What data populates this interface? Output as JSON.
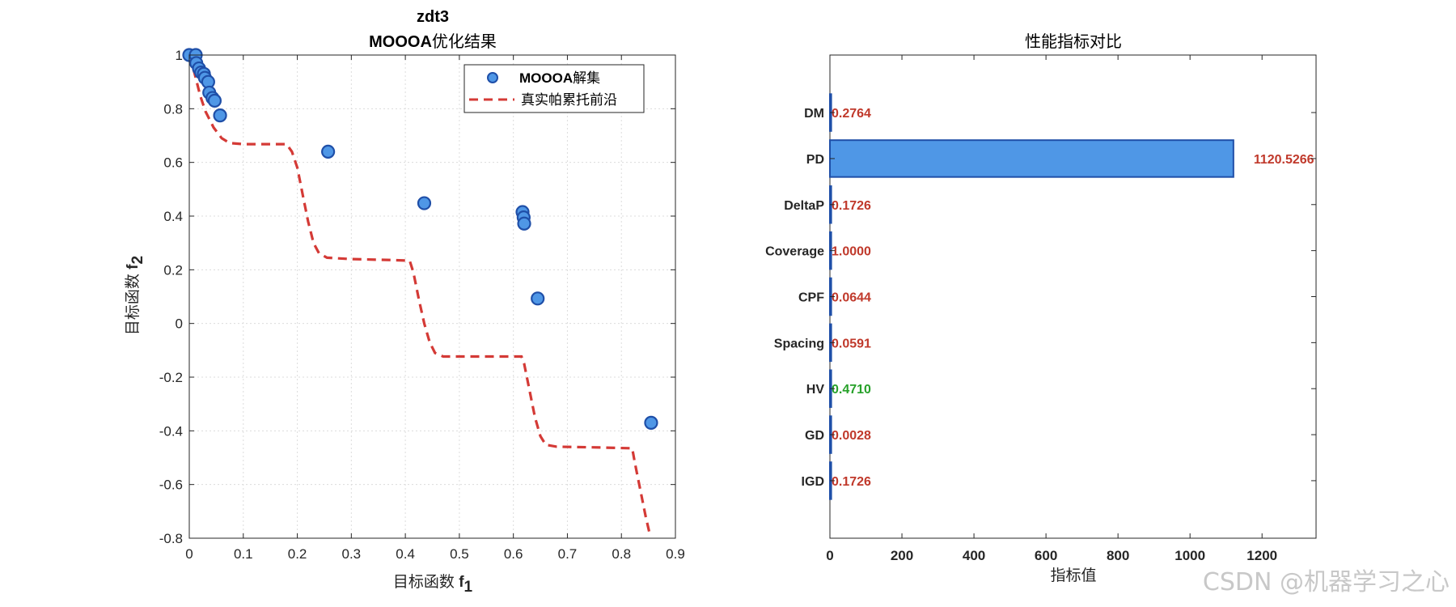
{
  "chart_data": [
    {
      "type": "scatter",
      "title": "zdt3",
      "subtitle_bold": "MOOOA",
      "subtitle_rest": "优化结果",
      "xlabel": "目标函数 ",
      "xlabel_bold": "f",
      "xlabel_sub": "1",
      "ylabel": "目标函数 ",
      "ylabel_bold": "f",
      "ylabel_sub": "2",
      "xlim": [
        0,
        0.9
      ],
      "ylim": [
        -0.8,
        1
      ],
      "xticks": [
        "0",
        "0.1",
        "0.2",
        "0.3",
        "0.4",
        "0.5",
        "0.6",
        "0.7",
        "0.8",
        "0.9"
      ],
      "yticks": [
        "-0.8",
        "-0.6",
        "-0.4",
        "-0.2",
        "0",
        "0.2",
        "0.4",
        "0.6",
        "0.8",
        "1"
      ],
      "grid": true,
      "legend_position": "top-right",
      "series": [
        {
          "name_bold": "MOOOA",
          "name_rest": "解集",
          "kind": "scatter",
          "color": "#4f97e6",
          "edge": "#1f4fa8",
          "points": [
            [
              0.0,
              1.0
            ],
            [
              0.012,
              1.0
            ],
            [
              0.013,
              0.97
            ],
            [
              0.018,
              0.95
            ],
            [
              0.022,
              0.935
            ],
            [
              0.027,
              0.93
            ],
            [
              0.029,
              0.915
            ],
            [
              0.035,
              0.9
            ],
            [
              0.037,
              0.86
            ],
            [
              0.043,
              0.84
            ],
            [
              0.047,
              0.83
            ],
            [
              0.057,
              0.775
            ],
            [
              0.257,
              0.64
            ],
            [
              0.435,
              0.448
            ],
            [
              0.617,
              0.415
            ],
            [
              0.619,
              0.395
            ],
            [
              0.62,
              0.372
            ],
            [
              0.645,
              0.093
            ],
            [
              0.855,
              -0.37
            ]
          ]
        },
        {
          "name": "真实帕累托前沿",
          "kind": "line-dashed",
          "color": "#d43a36",
          "points": [
            [
              0.0,
              1.0
            ],
            [
              0.01,
              0.93
            ],
            [
              0.02,
              0.85
            ],
            [
              0.03,
              0.79
            ],
            [
              0.045,
              0.73
            ],
            [
              0.06,
              0.69
            ],
            [
              0.075,
              0.672
            ],
            [
              0.1,
              0.668
            ],
            [
              0.15,
              0.668
            ],
            [
              0.18,
              0.668
            ],
            [
              0.19,
              0.64
            ],
            [
              0.2,
              0.58
            ],
            [
              0.21,
              0.48
            ],
            [
              0.22,
              0.38
            ],
            [
              0.23,
              0.3
            ],
            [
              0.24,
              0.262
            ],
            [
              0.255,
              0.245
            ],
            [
              0.3,
              0.24
            ],
            [
              0.38,
              0.236
            ],
            [
              0.408,
              0.234
            ],
            [
              0.415,
              0.19
            ],
            [
              0.425,
              0.09
            ],
            [
              0.435,
              0.0
            ],
            [
              0.445,
              -0.07
            ],
            [
              0.455,
              -0.11
            ],
            [
              0.47,
              -0.123
            ],
            [
              0.55,
              -0.123
            ],
            [
              0.615,
              -0.123
            ],
            [
              0.62,
              -0.15
            ],
            [
              0.63,
              -0.25
            ],
            [
              0.64,
              -0.35
            ],
            [
              0.65,
              -0.42
            ],
            [
              0.66,
              -0.452
            ],
            [
              0.68,
              -0.459
            ],
            [
              0.76,
              -0.462
            ],
            [
              0.82,
              -0.465
            ],
            [
              0.825,
              -0.52
            ],
            [
              0.835,
              -0.62
            ],
            [
              0.845,
              -0.72
            ],
            [
              0.852,
              -0.78
            ]
          ]
        }
      ]
    },
    {
      "type": "bar",
      "orientation": "horizontal",
      "title": "性能指标对比",
      "xlabel": "指标值",
      "ylabel": "",
      "xlim": [
        0,
        1350
      ],
      "xticks": [
        "0",
        "200",
        "400",
        "600",
        "800",
        "1000",
        "1200"
      ],
      "categories": [
        "DM",
        "PD",
        "DeltaP",
        "Coverage",
        "CPF",
        "Spacing",
        "HV",
        "GD",
        "IGD"
      ],
      "values": [
        0.2764,
        1120.5266,
        0.1726,
        1.0,
        0.0644,
        0.0591,
        0.471,
        0.0028,
        0.1726
      ],
      "labels": [
        "0.2764",
        "1120.5266",
        "0.1726",
        "1.0000",
        "0.0644",
        "0.0591",
        "0.4710",
        "0.0028",
        "0.1726"
      ],
      "label_colors": [
        "#c0392b",
        "#c0392b",
        "#c0392b",
        "#c0392b",
        "#c0392b",
        "#c0392b",
        "#27a12a",
        "#c0392b",
        "#c0392b"
      ],
      "bar_color": "#4f97e6",
      "bar_edge": "#1f4fa8",
      "grid": false
    }
  ],
  "watermark": "CSDN @机器学习之心"
}
